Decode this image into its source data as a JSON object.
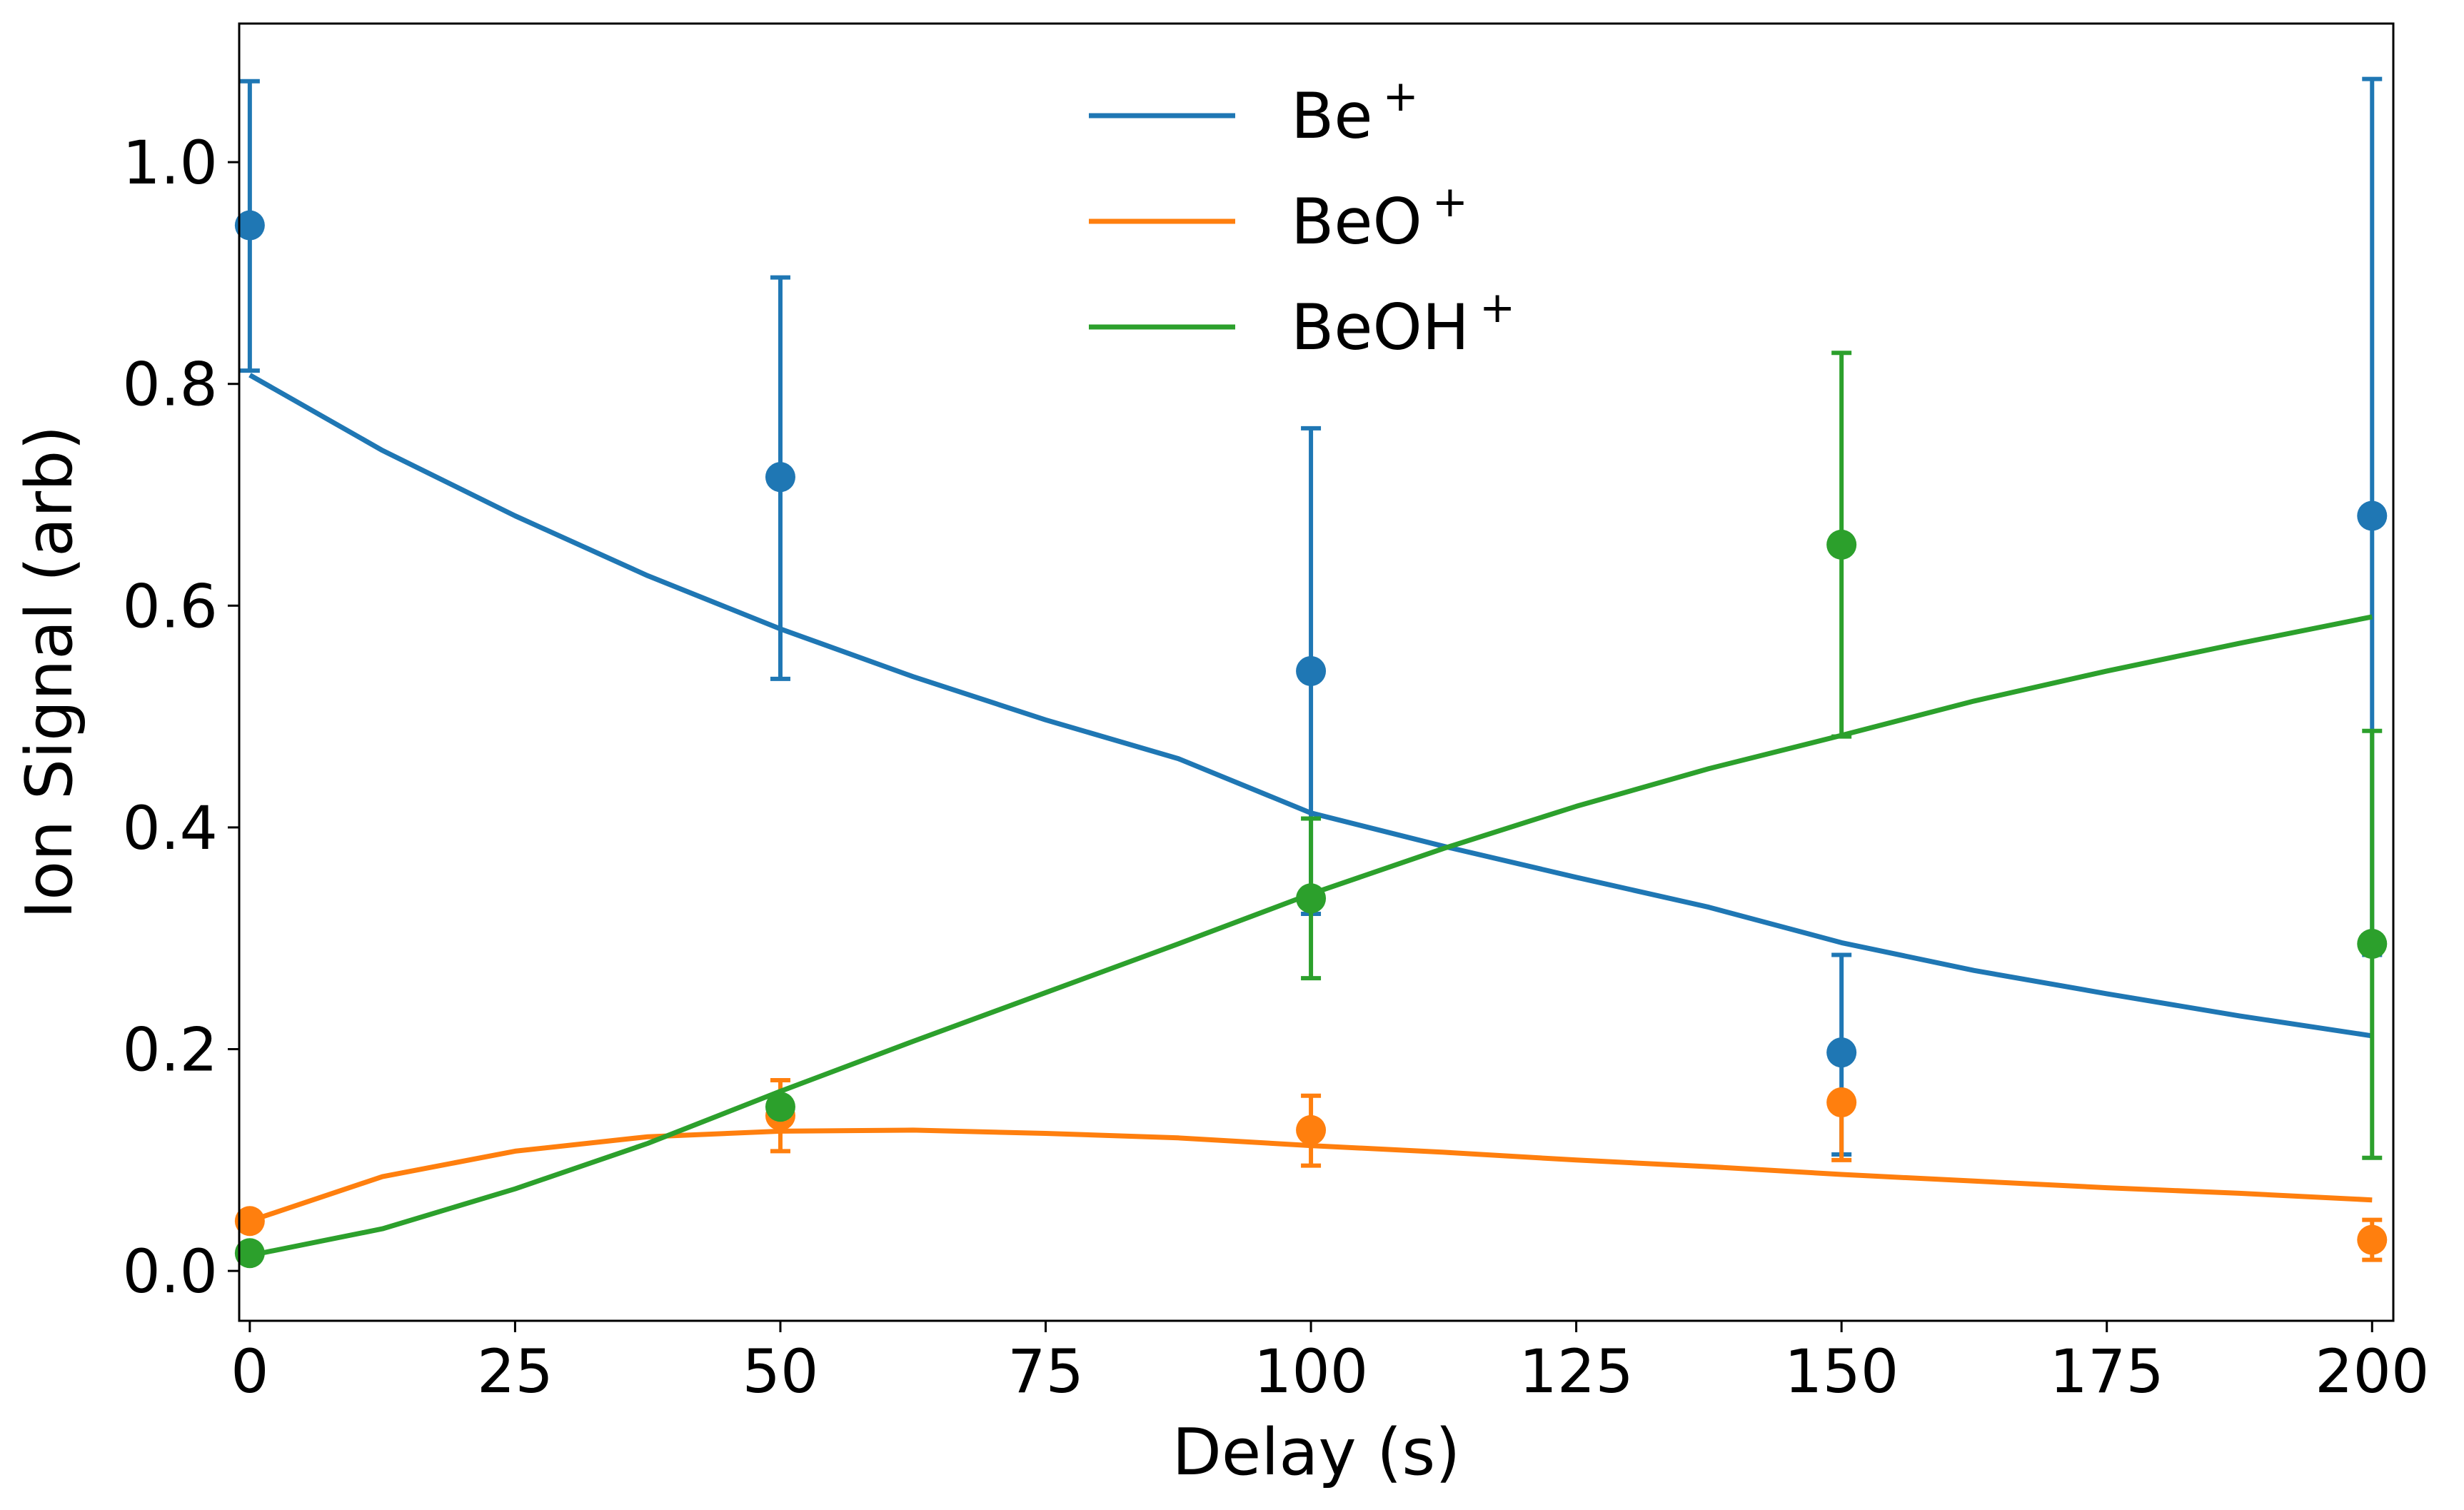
{
  "chart_data": {
    "type": "scatter",
    "title": "",
    "xlabel": "Delay (s)",
    "ylabel": "Ion Signal (arb)",
    "xlim": [
      -1,
      202
    ],
    "ylim": [
      -0.045,
      1.125
    ],
    "xticks": [
      0,
      25,
      50,
      75,
      100,
      125,
      150,
      175,
      200
    ],
    "xtick_labels": [
      "0",
      "25",
      "50",
      "75",
      "100",
      "125",
      "150",
      "175",
      "200"
    ],
    "yticks": [
      0.0,
      0.2,
      0.4,
      0.6,
      0.8,
      1.0
    ],
    "ytick_labels": [
      "0.0",
      "0.2",
      "0.4",
      "0.6",
      "0.8",
      "1.0"
    ],
    "grid": false,
    "legend_position": "top-center",
    "series": [
      {
        "name": "Be",
        "superscript": "+",
        "color": "#1f77b4",
        "x": [
          0,
          50,
          100,
          150,
          200
        ],
        "y": [
          0.943,
          0.716,
          0.541,
          0.197,
          0.681
        ],
        "yerr_low": [
          0.812,
          0.534,
          0.322,
          0.105,
          0.285
        ],
        "yerr_high": [
          1.073,
          0.896,
          0.76,
          0.285,
          1.075
        ],
        "fit": {
          "x": [
            0,
            12.5,
            25,
            37.5,
            50,
            62.5,
            75,
            87.5,
            100,
            112.5,
            125,
            137.5,
            150,
            162.5,
            175,
            187.5,
            200
          ],
          "y": [
            0.808,
            0.74,
            0.681,
            0.627,
            0.579,
            0.536,
            0.497,
            0.462,
            0.413,
            0.383,
            0.355,
            0.328,
            0.296,
            0.271,
            0.25,
            0.23,
            0.212
          ]
        }
      },
      {
        "name": "BeO",
        "superscript": "+",
        "color": "#ff7f0e",
        "x": [
          0,
          50,
          100,
          150,
          200
        ],
        "y": [
          0.045,
          0.14,
          0.127,
          0.152,
          0.028
        ],
        "yerr_low": [
          0.045,
          0.108,
          0.095,
          0.1,
          0.01
        ],
        "yerr_high": [
          0.045,
          0.172,
          0.158,
          0.152,
          0.046
        ],
        "fit": {
          "x": [
            0,
            12.5,
            25,
            37.5,
            50,
            62.5,
            75,
            87.5,
            100,
            112.5,
            125,
            137.5,
            150,
            162.5,
            175,
            187.5,
            200
          ],
          "y": [
            0.045,
            0.085,
            0.108,
            0.121,
            0.126,
            0.127,
            0.124,
            0.12,
            0.113,
            0.107,
            0.1,
            0.094,
            0.087,
            0.081,
            0.075,
            0.07,
            0.064
          ]
        }
      },
      {
        "name": "BeOH",
        "superscript": "+",
        "color": "#2ca02c",
        "x": [
          0,
          50,
          100,
          150,
          200
        ],
        "y": [
          0.016,
          0.148,
          0.336,
          0.655,
          0.295
        ],
        "yerr_low": [
          0.016,
          0.148,
          0.264,
          0.482,
          0.102
        ],
        "yerr_high": [
          0.016,
          0.148,
          0.408,
          0.828,
          0.487
        ],
        "fit": {
          "x": [
            0,
            12.5,
            25,
            37.5,
            50,
            62.5,
            75,
            87.5,
            100,
            112.5,
            125,
            137.5,
            150,
            162.5,
            175,
            187.5,
            200
          ],
          "y": [
            0.014,
            0.038,
            0.074,
            0.115,
            0.162,
            0.207,
            0.251,
            0.295,
            0.34,
            0.381,
            0.419,
            0.453,
            0.483,
            0.514,
            0.541,
            0.566,
            0.59
          ]
        }
      }
    ]
  }
}
